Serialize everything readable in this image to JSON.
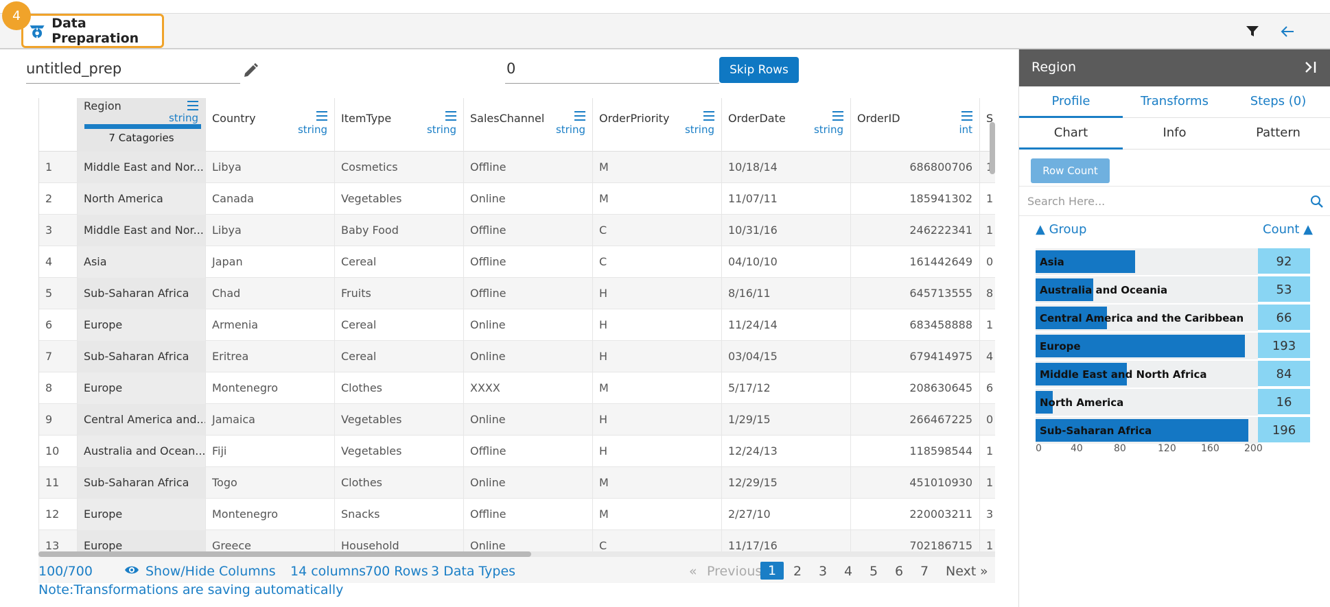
{
  "header": {
    "step_badge": "4",
    "title": "Data Preparation"
  },
  "toolbar": {
    "prep_name": "untitled_prep",
    "skip_rows_value": "0",
    "skip_rows_label": "Skip Rows"
  },
  "grid": {
    "columns": [
      {
        "name": "Region",
        "type": "string",
        "selected": true,
        "categories_label": "7 Catagories"
      },
      {
        "name": "Country",
        "type": "string"
      },
      {
        "name": "ItemType",
        "type": "string"
      },
      {
        "name": "SalesChannel",
        "type": "string"
      },
      {
        "name": "OrderPriority",
        "type": "string"
      },
      {
        "name": "OrderDate",
        "type": "string"
      },
      {
        "name": "OrderID",
        "type": "int"
      },
      {
        "name": "S",
        "type": ""
      }
    ],
    "rows": [
      {
        "id": "1",
        "cells": [
          "Middle East and Nor...",
          "Libya",
          "Cosmetics",
          "Offline",
          "M",
          "10/18/14",
          "686800706",
          "1"
        ]
      },
      {
        "id": "2",
        "cells": [
          "North America",
          "Canada",
          "Vegetables",
          "Online",
          "M",
          "11/07/11",
          "185941302",
          "1"
        ]
      },
      {
        "id": "3",
        "cells": [
          "Middle East and Nor...",
          "Libya",
          "Baby Food",
          "Offline",
          "C",
          "10/31/16",
          "246222341",
          "1"
        ]
      },
      {
        "id": "4",
        "cells": [
          "Asia",
          "Japan",
          "Cereal",
          "Offline",
          "C",
          "04/10/10",
          "161442649",
          "0"
        ]
      },
      {
        "id": "5",
        "cells": [
          "Sub-Saharan Africa",
          "Chad",
          "Fruits",
          "Offline",
          "H",
          "8/16/11",
          "645713555",
          "8"
        ]
      },
      {
        "id": "6",
        "cells": [
          "Europe",
          "Armenia",
          "Cereal",
          "Online",
          "H",
          "11/24/14",
          "683458888",
          "1"
        ]
      },
      {
        "id": "7",
        "cells": [
          "Sub-Saharan Africa",
          "Eritrea",
          "Cereal",
          "Online",
          "H",
          "03/04/15",
          "679414975",
          "4"
        ]
      },
      {
        "id": "8",
        "cells": [
          "Europe",
          "Montenegro",
          "Clothes",
          "XXXX",
          "M",
          "5/17/12",
          "208630645",
          "6"
        ]
      },
      {
        "id": "9",
        "cells": [
          "Central America and...",
          "Jamaica",
          "Vegetables",
          "Online",
          "H",
          "1/29/15",
          "266467225",
          "0"
        ]
      },
      {
        "id": "10",
        "cells": [
          "Australia and Ocean...",
          "Fiji",
          "Vegetables",
          "Offline",
          "H",
          "12/24/13",
          "118598544",
          "1"
        ]
      },
      {
        "id": "11",
        "cells": [
          "Sub-Saharan Africa",
          "Togo",
          "Clothes",
          "Online",
          "M",
          "12/29/15",
          "451010930",
          "1"
        ]
      },
      {
        "id": "12",
        "cells": [
          "Europe",
          "Montenegro",
          "Snacks",
          "Offline",
          "M",
          "2/27/10",
          "220003211",
          "3"
        ]
      },
      {
        "id": "13",
        "cells": [
          "Europe",
          "Greece",
          "Household",
          "Online",
          "C",
          "11/17/16",
          "702186715",
          "1"
        ]
      }
    ]
  },
  "footer": {
    "record_range": "100/700",
    "show_hide_label": "Show/Hide Columns",
    "columns_count": "14 columns",
    "rows_count": "700 Rows",
    "data_types": "3 Data Types",
    "prev_label": "Previous",
    "prev_arrows": "«",
    "next_label": "Next",
    "next_arrows": "»",
    "pages": [
      "1",
      "2",
      "3",
      "4",
      "5",
      "6",
      "7"
    ],
    "current_page": "1",
    "note": "Note:Transformations are saving automatically"
  },
  "panel": {
    "title": "Region",
    "tabs": [
      "Profile",
      "Transforms",
      "Steps (0)"
    ],
    "subtabs": [
      "Chart",
      "Info",
      "Pattern"
    ],
    "row_count_label": "Row Count",
    "search_placeholder": "Search Here...",
    "group_header": "▲ Group",
    "count_header": "Count ▲"
  },
  "chart_data": {
    "type": "bar",
    "orientation": "horizontal",
    "categories": [
      "Asia",
      "Australia and Oceania",
      "Central America and the Caribbean",
      "Europe",
      "Middle East and North Africa",
      "North America",
      "Sub-Saharan Africa"
    ],
    "values": [
      92,
      53,
      66,
      193,
      84,
      16,
      196
    ],
    "xticks": [
      "0",
      "40",
      "80",
      "120",
      "160",
      "200"
    ],
    "xlim": [
      0,
      200
    ],
    "bar_color": "#1477c4",
    "count_color": "#89d5f3"
  },
  "colors": {
    "accent": "#1a7ec6",
    "highlight": "#f0a32a"
  }
}
